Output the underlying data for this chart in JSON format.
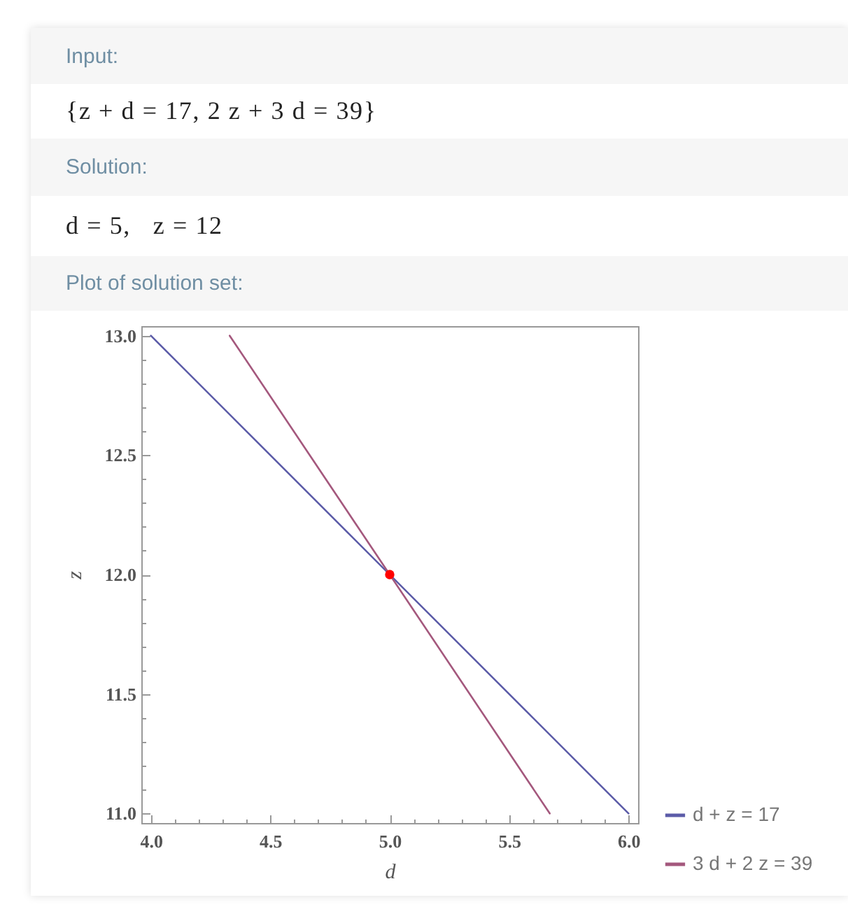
{
  "chart_data": {
    "type": "line",
    "title": "Plot of solution set:",
    "annotations": [
      "Input:",
      "{z + d = 17, 2 z + 3 d = 39}",
      "Solution:",
      "d = 5,   z = 12"
    ],
    "xlabel": "d",
    "ylabel": "z",
    "series": [
      {
        "name": "d + z = 17",
        "color": "#5c5ca8",
        "x": [
          4,
          6
        ],
        "values": [
          13,
          11
        ]
      },
      {
        "name": "3 d + 2 z = 39",
        "color": "#a4587d",
        "x": [
          4.33,
          5.67
        ],
        "values": [
          13,
          11
        ]
      },
      {
        "type": "scatter",
        "color": "#ff0000",
        "x": [
          5
        ],
        "values": [
          12
        ],
        "marker": "circle"
      }
    ],
    "xlim": [
      3.96,
      6.04
    ],
    "ylim": [
      10.96,
      13.04
    ],
    "xticks": [
      {
        "value": 4,
        "label": "4.0"
      },
      {
        "value": 4.1,
        "label": null
      },
      {
        "value": 4.2,
        "label": null
      },
      {
        "value": 4.3,
        "label": null
      },
      {
        "value": 4.4,
        "label": null
      },
      4.5,
      {
        "value": 4.6,
        "label": null
      },
      {
        "value": 4.7,
        "label": null
      },
      {
        "value": 4.8,
        "label": null
      },
      {
        "value": 4.9,
        "label": null
      },
      {
        "value": 5,
        "label": "5.0"
      },
      {
        "value": 5.1,
        "label": null
      },
      {
        "value": 5.2,
        "label": null
      },
      {
        "value": 5.3,
        "label": null
      },
      {
        "value": 5.4,
        "label": null
      },
      5.5,
      {
        "value": 5.6,
        "label": null
      },
      {
        "value": 5.7,
        "label": null
      },
      {
        "value": 5.8,
        "label": null
      },
      {
        "value": 5.9,
        "label": null
      },
      {
        "value": 6,
        "label": "6.0"
      }
    ],
    "yticks": [
      {
        "value": 11,
        "label": "11.0"
      },
      {
        "value": 11.1,
        "label": null
      },
      {
        "value": 11.2,
        "label": null
      },
      {
        "value": 11.3,
        "label": null
      },
      {
        "value": 11.4,
        "label": null
      },
      11.5,
      {
        "value": 11.6,
        "label": null
      },
      {
        "value": 11.7,
        "label": null
      },
      {
        "value": 11.8,
        "label": null
      },
      {
        "value": 11.9,
        "label": null
      },
      {
        "value": 12,
        "label": "12.0"
      },
      {
        "value": 12.1,
        "label": null
      },
      {
        "value": 12.2,
        "label": null
      },
      {
        "value": 12.3,
        "label": null
      },
      {
        "value": 12.4,
        "label": null
      },
      12.5,
      {
        "value": 12.6,
        "label": null
      },
      {
        "value": 12.7,
        "label": null
      },
      {
        "value": 12.8,
        "label": null
      },
      {
        "value": 12.9,
        "label": null
      },
      {
        "value": 13,
        "label": "13.0"
      }
    ],
    "legend": "bottom right"
  }
}
